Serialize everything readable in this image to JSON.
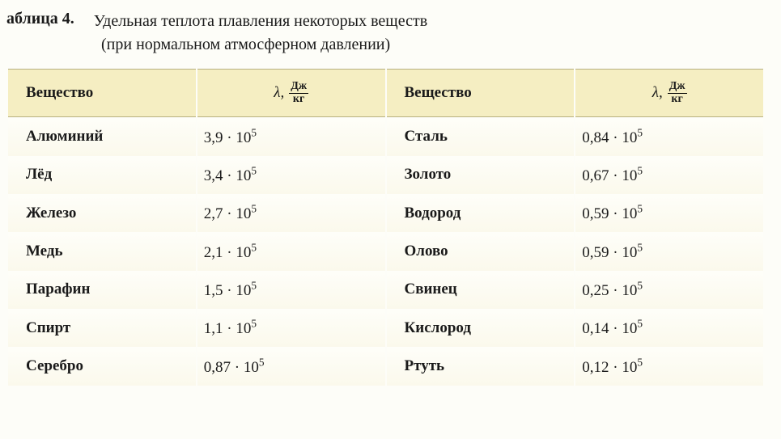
{
  "header": {
    "table_label": "аблица 4.",
    "title": "Удельная теплота плавления некоторых веществ",
    "subtitle": "(при нормальном атмосферном давлении)"
  },
  "columns": {
    "substance_label": "Вещество",
    "lambda_symbol": "λ,",
    "unit_top": "Дж",
    "unit_bottom": "кг"
  },
  "rows": [
    {
      "l_sub": "Алюминий",
      "l_coef": "3,9",
      "l_exp": "5",
      "r_sub": "Сталь",
      "r_coef": "0,84",
      "r_exp": "5"
    },
    {
      "l_sub": "Лёд",
      "l_coef": "3,4",
      "l_exp": "5",
      "r_sub": "Золото",
      "r_coef": "0,67",
      "r_exp": "5"
    },
    {
      "l_sub": "Железо",
      "l_coef": "2,7",
      "l_exp": "5",
      "r_sub": "Водород",
      "r_coef": "0,59",
      "r_exp": "5"
    },
    {
      "l_sub": "Медь",
      "l_coef": "2,1",
      "l_exp": "5",
      "r_sub": "Олово",
      "r_coef": "0,59",
      "r_exp": "5"
    },
    {
      "l_sub": "Парафин",
      "l_coef": "1,5",
      "l_exp": "5",
      "r_sub": "Свинец",
      "r_coef": "0,25",
      "r_exp": "5"
    },
    {
      "l_sub": "Спирт",
      "l_coef": "1,1",
      "l_exp": "5",
      "r_sub": "Кислород",
      "r_coef": "0,14",
      "r_exp": "5"
    },
    {
      "l_sub": "Серебро",
      "l_coef": "0,87",
      "l_exp": "5",
      "r_sub": "Ртуть",
      "r_coef": "0,12",
      "r_exp": "5"
    }
  ]
}
